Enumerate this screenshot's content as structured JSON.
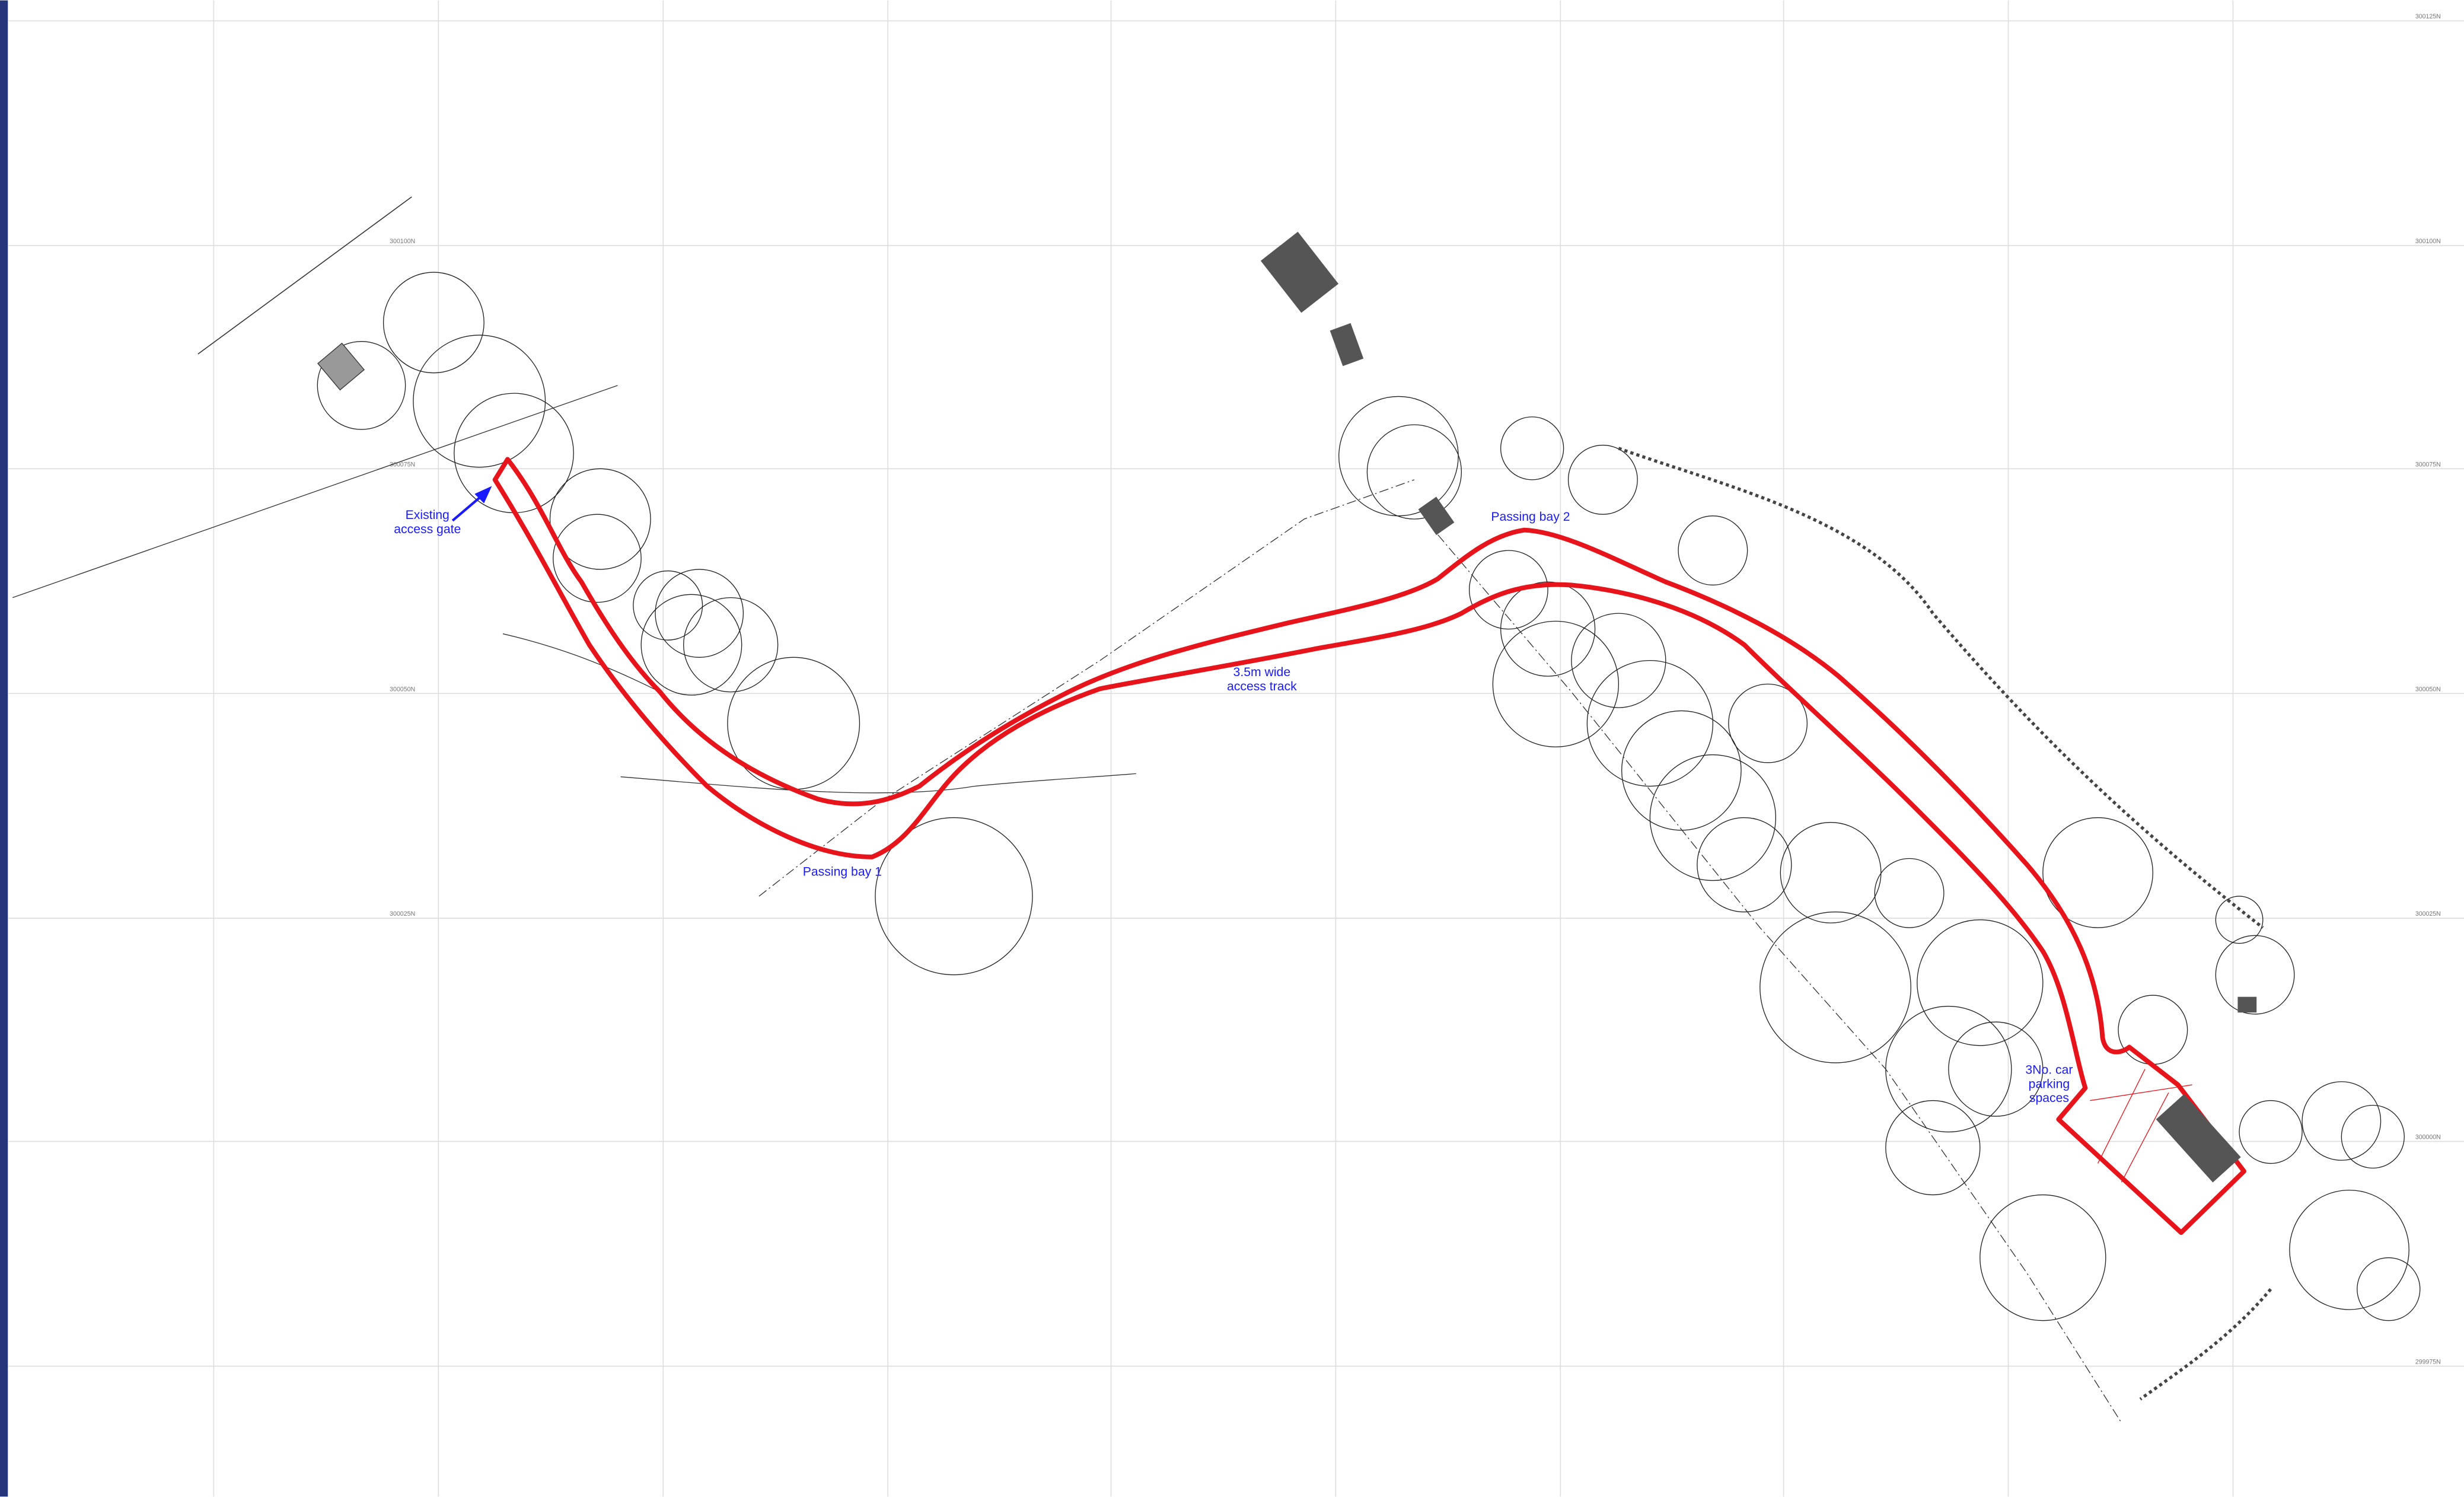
{
  "annotations": [
    {
      "lines": [
        "Existing",
        "access gate"
      ]
    },
    {
      "lines": [
        "Passing bay 1"
      ]
    },
    {
      "lines": [
        "3.5m wide",
        "access track"
      ]
    },
    {
      "lines": [
        "Passing bay 2"
      ]
    },
    {
      "lines": [
        "3No. car",
        "parking",
        "spaces"
      ]
    }
  ],
  "grid_labels_right": [
    "300125N",
    "300100N",
    "300075N",
    "300050N",
    "300025N",
    "300000N",
    "299975N"
  ],
  "grid_labels_left": [
    "300100N",
    "300075N",
    "300050N",
    "300025N"
  ]
}
